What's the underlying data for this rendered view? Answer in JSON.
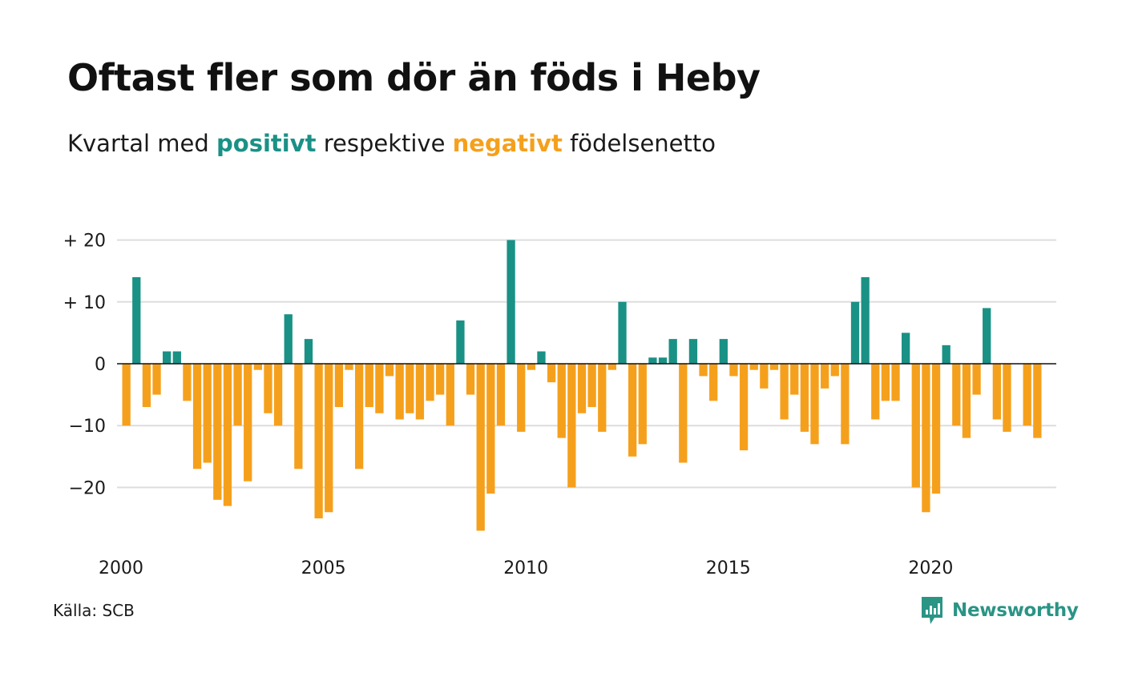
{
  "title": "Oftast fler som dör än föds i Heby",
  "subtitle": {
    "prefix": "Kvartal med ",
    "positive_word": "positivt",
    "middle": " respektive ",
    "negative_word": "negativt",
    "suffix": " födelsenetto"
  },
  "source": "Källa: SCB",
  "brand": "Newsworthy",
  "colors": {
    "positive": "#1a9185",
    "negative": "#f5a01c",
    "grid": "#dddddd",
    "zero": "#111111",
    "brand": "#2a9485"
  },
  "icons": {
    "logo": "newsworthy-bar-chart-logo-icon"
  },
  "chart_data": {
    "type": "bar",
    "x_start": "2000 Q1",
    "x_step": "quarter",
    "x_ticks": [
      {
        "value": 2000,
        "label": "2000"
      },
      {
        "value": 2005,
        "label": "2005"
      },
      {
        "value": 2010,
        "label": "2010"
      },
      {
        "value": 2015,
        "label": "2015"
      },
      {
        "value": 2020,
        "label": "2020"
      }
    ],
    "y_ticks": [
      {
        "value": 20,
        "label": "+ 20"
      },
      {
        "value": 10,
        "label": "+ 10"
      },
      {
        "value": 0,
        "label": "0"
      },
      {
        "value": -10,
        "label": "−10"
      },
      {
        "value": -20,
        "label": "−20"
      }
    ],
    "ylim": [
      -28,
      20
    ],
    "grid": true,
    "values": [
      -10,
      14,
      -7,
      -5,
      2,
      2,
      -6,
      -17,
      -16,
      -22,
      -23,
      -10,
      -19,
      -1,
      -8,
      -10,
      8,
      -17,
      4,
      -25,
      -24,
      -7,
      -1,
      -17,
      -7,
      -8,
      -2,
      -9,
      -8,
      -9,
      -6,
      -5,
      -10,
      7,
      -5,
      -27,
      -21,
      -10,
      20,
      -11,
      -1,
      2,
      -3,
      -12,
      -20,
      -8,
      -7,
      -11,
      -1,
      10,
      -15,
      -13,
      1,
      1,
      4,
      -16,
      4,
      -2,
      -6,
      4,
      -2,
      -14,
      -1,
      -4,
      -1,
      -9,
      -5,
      -11,
      -13,
      -4,
      -2,
      -13,
      10,
      14,
      -9,
      -6,
      -6,
      5,
      -20,
      -24,
      -21,
      3,
      -10,
      -12,
      -5,
      9,
      -9,
      -11,
      0,
      -10,
      -12
    ]
  }
}
